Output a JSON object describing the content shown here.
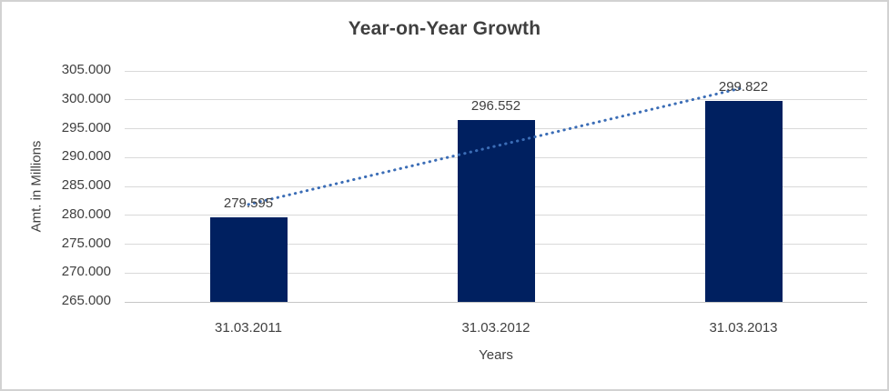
{
  "window": {
    "background": "#ffffff",
    "border_color": "#d2d2d2"
  },
  "chart_data": {
    "type": "bar",
    "title": "Year-on-Year Growth",
    "categories": [
      "31.03.2011",
      "31.03.2012",
      "31.03.2013"
    ],
    "values": [
      279.595,
      296.552,
      299.822
    ],
    "data_labels": [
      "279.595",
      "296.552",
      "299.822"
    ],
    "xlabel": "Years",
    "ylabel": "Amt. in Millions",
    "ylim": [
      265,
      305
    ],
    "ytick_step": 5,
    "ytick_labels": [
      "265.000",
      "270.000",
      "275.000",
      "280.000",
      "285.000",
      "290.000",
      "295.000",
      "300.000",
      "305.000"
    ],
    "grid": true,
    "legend": "none",
    "bar_color": "#002060",
    "text_color": "#404040",
    "gridline_color": "#d9d9d9",
    "trendline": {
      "type": "linear",
      "style": "dotted",
      "color": "#3b6db6",
      "start_value": 281.88,
      "end_value": 302.1
    }
  }
}
